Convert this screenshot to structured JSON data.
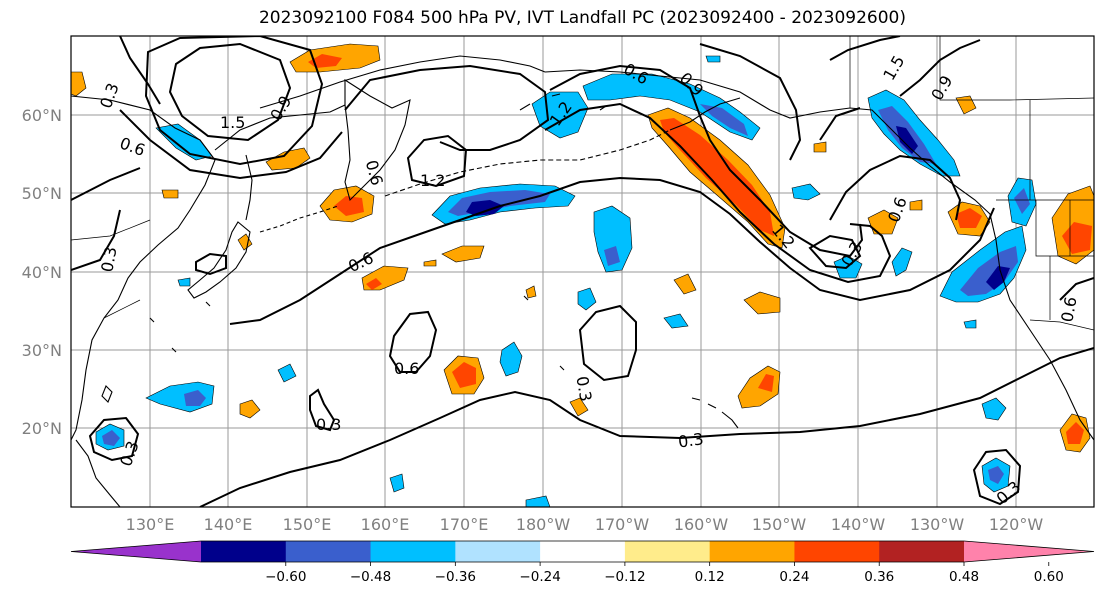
{
  "title": "2023092100 F084 500 hPa PV, IVT Landfall PC (2023092400 - 2023092600)",
  "lat_labels": [
    "60°N",
    "50°N",
    "40°N",
    "30°N",
    "20°N"
  ],
  "lon_labels": [
    "130°E",
    "140°E",
    "150°E",
    "160°E",
    "170°E",
    "180°W",
    "170°W",
    "160°W",
    "150°W",
    "140°W",
    "130°W",
    "120°W"
  ],
  "contour_labels": [
    "0.3",
    "1.5",
    "0.6",
    "0.9",
    "1.2",
    "0.6",
    "0.6",
    "0.3",
    "0.6",
    "1.2",
    "0.3",
    "0.3",
    "0.3",
    "0.6",
    "0.9",
    "1.5",
    "0.9",
    "0.6",
    "0.3",
    "0.6",
    "0.3",
    "0.3"
  ],
  "colorbar": {
    "ticks": [
      "−0.60",
      "−0.48",
      "−0.36",
      "−0.24",
      "−0.12",
      "0.12",
      "0.24",
      "0.36",
      "0.48",
      "0.60"
    ],
    "colors": [
      "#9932cc",
      "#00008b",
      "#3a5fcd",
      "#00bfff",
      "#b0e2ff",
      "#ffffff",
      "#ffec8b",
      "#ffa500",
      "#ff4500",
      "#b22222",
      "#ff82ab"
    ]
  }
}
